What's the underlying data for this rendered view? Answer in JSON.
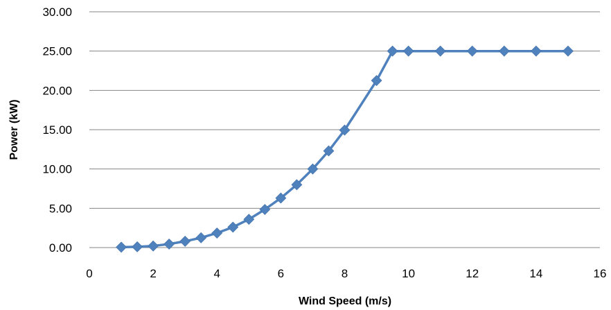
{
  "chart_data": {
    "type": "scatter",
    "title": "",
    "xlabel": "Wind Speed (m/s)",
    "ylabel": "Power (kW)",
    "xlim": [
      0,
      16
    ],
    "ylim": [
      0,
      30
    ],
    "x_ticks": [
      "0",
      "2",
      "4",
      "6",
      "8",
      "10",
      "12",
      "14",
      "16"
    ],
    "y_ticks": [
      "0.00",
      "5.00",
      "10.00",
      "15.00",
      "20.00",
      "25.00",
      "30.00"
    ],
    "grid": "horizontal",
    "legend": "none",
    "series_color": "#4F81BD",
    "series": [
      {
        "x": [
          1,
          1.5,
          2,
          2.5,
          3,
          3.5,
          4,
          4.5,
          5,
          5.5,
          6,
          6.5,
          7,
          7.5,
          8,
          9,
          9.5,
          10,
          11,
          12,
          13,
          14,
          15
        ],
        "y": [
          0.05,
          0.1,
          0.2,
          0.45,
          0.8,
          1.25,
          1.85,
          2.6,
          3.6,
          4.85,
          6.3,
          8.0,
          10.0,
          12.3,
          14.95,
          21.25,
          25.0,
          25.0,
          25.0,
          25.0,
          25.0,
          25.0,
          25.0
        ]
      }
    ]
  }
}
